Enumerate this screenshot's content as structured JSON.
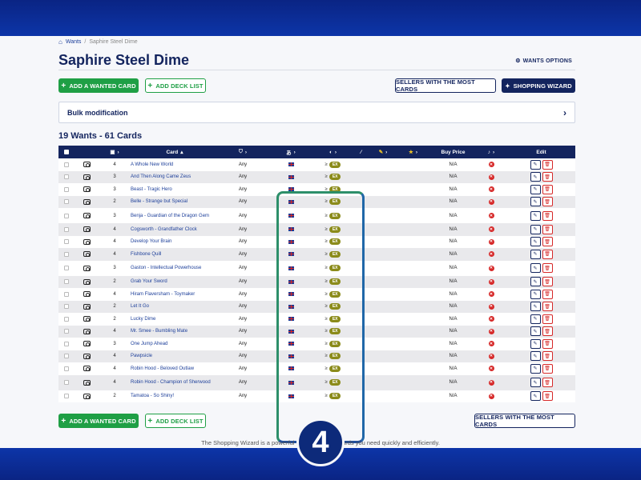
{
  "breadcrumb": {
    "home_icon": "home-icon",
    "parent": "Wants",
    "current": "Saphire Steel Dime"
  },
  "title": "Saphire Steel Dime",
  "wants_options": "WANTS OPTIONS",
  "buttons": {
    "add_wanted_card": "ADD A WANTED CARD",
    "add_deck_list": "ADD DECK LIST",
    "sellers_most_cards": "SELLERS WITH THE MOST CARDS",
    "shopping_wizard": "SHOPPING WIZARD"
  },
  "bulk_modification": "Bulk modification",
  "summary": "19 Wants - 61 Cards",
  "table": {
    "headers": {
      "card": "Card",
      "buy_price": "Buy Price",
      "edit": "Edit"
    },
    "rows": [
      {
        "qty": "4",
        "name": "A Whole New World",
        "exp": "Any",
        "price": "N/A"
      },
      {
        "qty": "3",
        "name": "And Then Along Came Zeus",
        "exp": "Any",
        "price": "N/A"
      },
      {
        "qty": "3",
        "name": "Beast - Tragic Hero",
        "exp": "Any",
        "price": "N/A"
      },
      {
        "qty": "2",
        "name": "Belle - Strange but Special",
        "exp": "Any",
        "price": "N/A"
      },
      {
        "qty": "3",
        "name": "Benja - Guardian of the Dragon Gem",
        "exp": "Any",
        "price": "N/A",
        "tall": true
      },
      {
        "qty": "4",
        "name": "Cogsworth - Grandfather Clock",
        "exp": "Any",
        "price": "N/A"
      },
      {
        "qty": "4",
        "name": "Develop Your Brain",
        "exp": "Any",
        "price": "N/A"
      },
      {
        "qty": "4",
        "name": "Fishbone Quill",
        "exp": "Any",
        "price": "N/A"
      },
      {
        "qty": "3",
        "name": "Gaston - Intellectual Powerhouse",
        "exp": "Any",
        "price": "N/A",
        "tall": true
      },
      {
        "qty": "2",
        "name": "Grab Your Sword",
        "exp": "Any",
        "price": "N/A"
      },
      {
        "qty": "4",
        "name": "Hiram Flaversham - Toymaker",
        "exp": "Any",
        "price": "N/A"
      },
      {
        "qty": "2",
        "name": "Let It Go",
        "exp": "Any",
        "price": "N/A"
      },
      {
        "qty": "2",
        "name": "Lucky Dime",
        "exp": "Any",
        "price": "N/A"
      },
      {
        "qty": "4",
        "name": "Mr. Smee - Bumbling Mate",
        "exp": "Any",
        "price": "N/A"
      },
      {
        "qty": "3",
        "name": "One Jump Ahead",
        "exp": "Any",
        "price": "N/A"
      },
      {
        "qty": "4",
        "name": "Pawpsicle",
        "exp": "Any",
        "price": "N/A"
      },
      {
        "qty": "4",
        "name": "Robin Hood - Beloved Outlaw",
        "exp": "Any",
        "price": "N/A"
      },
      {
        "qty": "4",
        "name": "Robin Hood - Champion of Sherwood",
        "exp": "Any",
        "price": "N/A",
        "tall": true
      },
      {
        "qty": "2",
        "name": "Tamatoa - So Shiny!",
        "exp": "Any",
        "price": "N/A"
      }
    ],
    "condition_prefix": "≥",
    "condition_badge": "EX"
  },
  "footer_text": "The Shopping Wizard is a powerful tool that h                            e the cards you need quickly and efficiently.",
  "step_badge": "4",
  "colors": {
    "navy": "#13245e",
    "green": "#1f9f45",
    "red": "#d62828",
    "band": "#0b2a8c"
  }
}
